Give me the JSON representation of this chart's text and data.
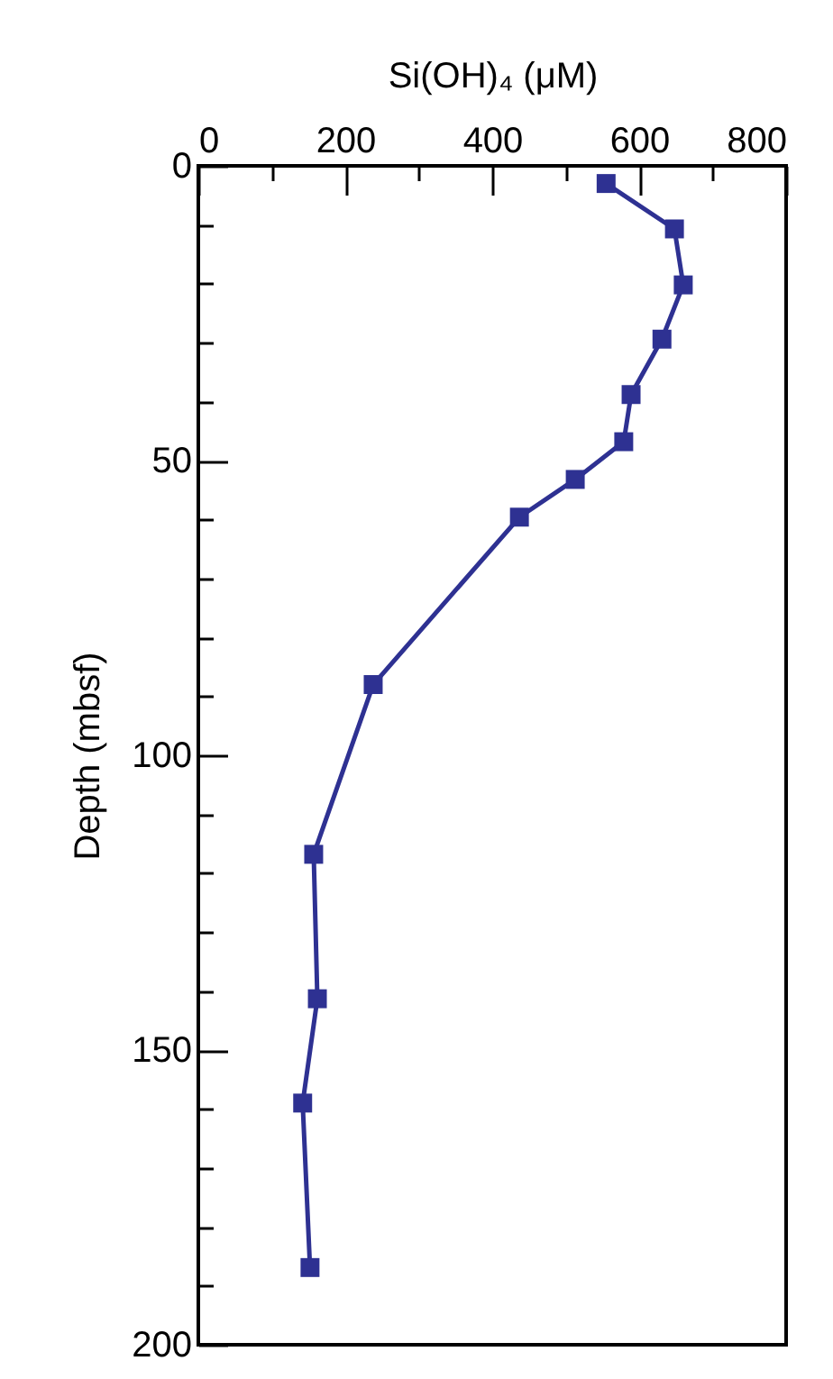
{
  "chart_data": {
    "type": "line",
    "xlabel": "Si(OH)₄ (μM)",
    "ylabel": "Depth (mbsf)",
    "x": [
      555,
      648,
      660,
      631,
      589,
      579,
      513,
      437,
      238,
      157,
      162,
      142,
      152
    ],
    "series": [
      {
        "color": "#2e3192",
        "values": [
          3,
          10.7,
          20.2,
          29.4,
          38.8,
          46.8,
          53.2,
          59.6,
          88,
          116.8,
          141.3,
          159,
          186.9
        ]
      }
    ],
    "xlim": [
      0,
      800
    ],
    "ylim": [
      200,
      0
    ],
    "xticks": [
      0,
      {
        "value": 100,
        "label": null
      },
      200,
      {
        "value": 300,
        "label": null
      },
      400,
      {
        "value": 500,
        "label": null
      },
      600,
      {
        "value": 700,
        "label": null
      },
      800
    ],
    "yticks": [
      0,
      {
        "value": 10,
        "label": null
      },
      {
        "value": 20,
        "label": null
      },
      {
        "value": 30,
        "label": null
      },
      {
        "value": 40,
        "label": null
      },
      50,
      {
        "value": 60,
        "label": null
      },
      {
        "value": 70,
        "label": null
      },
      {
        "value": 80,
        "label": null
      },
      {
        "value": 90,
        "label": null
      },
      100,
      {
        "value": 110,
        "label": null
      },
      {
        "value": 120,
        "label": null
      },
      {
        "value": 130,
        "label": null
      },
      {
        "value": 140,
        "label": null
      },
      150,
      {
        "value": 160,
        "label": null
      },
      {
        "value": 170,
        "label": null
      },
      {
        "value": 180,
        "label": null
      },
      {
        "value": 190,
        "label": null
      },
      200
    ],
    "marker": "square",
    "line_style": "solid"
  }
}
